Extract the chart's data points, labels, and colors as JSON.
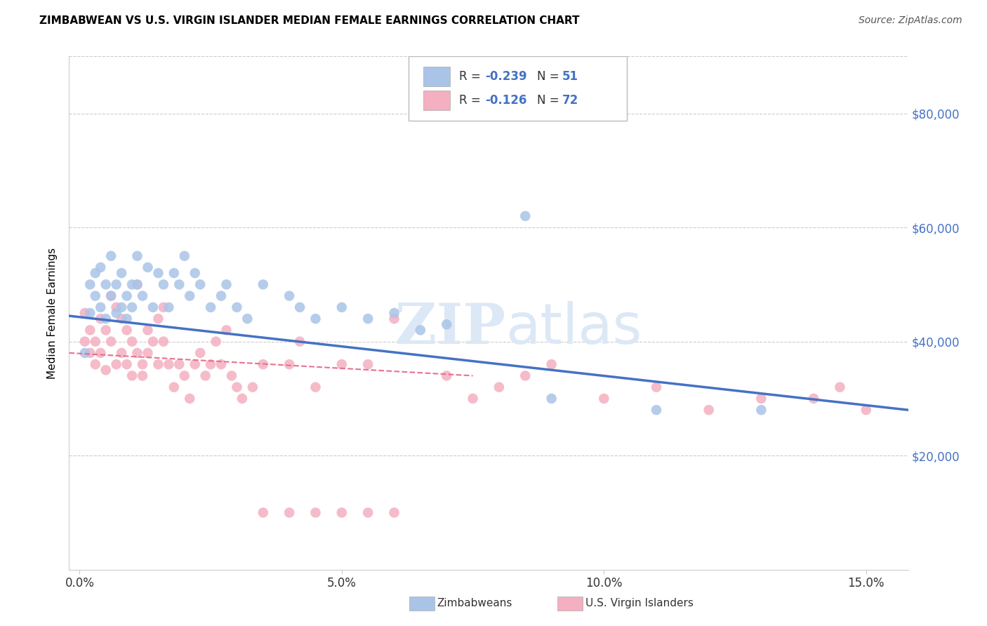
{
  "title": "ZIMBABWEAN VS U.S. VIRGIN ISLANDER MEDIAN FEMALE EARNINGS CORRELATION CHART",
  "source": "Source: ZipAtlas.com",
  "ylabel": "Median Female Earnings",
  "xlabel_ticks": [
    "0.0%",
    "5.0%",
    "10.0%",
    "15.0%"
  ],
  "xlabel_vals": [
    0.0,
    0.05,
    0.1,
    0.15
  ],
  "ylabel_ticks": [
    "$20,000",
    "$40,000",
    "$60,000",
    "$80,000"
  ],
  "ylabel_vals": [
    20000,
    40000,
    60000,
    80000
  ],
  "ylim": [
    0,
    90000
  ],
  "xlim": [
    -0.002,
    0.158
  ],
  "blue_color": "#aac4e8",
  "pink_color": "#f4afc0",
  "blue_line_color": "#4472c4",
  "pink_line_color": "#e87090",
  "background_color": "#ffffff",
  "grid_color": "#cccccc",
  "blue_scatter_x": [
    0.001,
    0.002,
    0.002,
    0.003,
    0.003,
    0.004,
    0.004,
    0.005,
    0.005,
    0.006,
    0.006,
    0.007,
    0.007,
    0.008,
    0.008,
    0.009,
    0.009,
    0.01,
    0.01,
    0.011,
    0.011,
    0.012,
    0.013,
    0.014,
    0.015,
    0.016,
    0.017,
    0.018,
    0.019,
    0.02,
    0.021,
    0.022,
    0.023,
    0.025,
    0.027,
    0.028,
    0.03,
    0.032,
    0.035,
    0.04,
    0.042,
    0.045,
    0.05,
    0.055,
    0.06,
    0.065,
    0.07,
    0.085,
    0.09,
    0.11,
    0.13
  ],
  "blue_scatter_y": [
    38000,
    45000,
    50000,
    48000,
    52000,
    46000,
    53000,
    50000,
    44000,
    48000,
    55000,
    50000,
    45000,
    52000,
    46000,
    48000,
    44000,
    50000,
    46000,
    50000,
    55000,
    48000,
    53000,
    46000,
    52000,
    50000,
    46000,
    52000,
    50000,
    55000,
    48000,
    52000,
    50000,
    46000,
    48000,
    50000,
    46000,
    44000,
    50000,
    48000,
    46000,
    44000,
    46000,
    44000,
    45000,
    42000,
    43000,
    62000,
    30000,
    28000,
    28000
  ],
  "pink_scatter_x": [
    0.001,
    0.001,
    0.002,
    0.002,
    0.003,
    0.003,
    0.004,
    0.004,
    0.005,
    0.005,
    0.006,
    0.006,
    0.007,
    0.007,
    0.008,
    0.008,
    0.009,
    0.009,
    0.01,
    0.01,
    0.011,
    0.011,
    0.012,
    0.012,
    0.013,
    0.013,
    0.014,
    0.015,
    0.015,
    0.016,
    0.016,
    0.017,
    0.018,
    0.019,
    0.02,
    0.021,
    0.022,
    0.023,
    0.024,
    0.025,
    0.026,
    0.027,
    0.028,
    0.029,
    0.03,
    0.031,
    0.033,
    0.035,
    0.04,
    0.042,
    0.045,
    0.05,
    0.055,
    0.06,
    0.07,
    0.075,
    0.08,
    0.085,
    0.09,
    0.1,
    0.11,
    0.12,
    0.13,
    0.14,
    0.145,
    0.15,
    0.035,
    0.04,
    0.045,
    0.05,
    0.055,
    0.06
  ],
  "pink_scatter_y": [
    40000,
    45000,
    38000,
    42000,
    36000,
    40000,
    44000,
    38000,
    42000,
    35000,
    48000,
    40000,
    46000,
    36000,
    44000,
    38000,
    42000,
    36000,
    40000,
    34000,
    38000,
    50000,
    36000,
    34000,
    38000,
    42000,
    40000,
    44000,
    36000,
    40000,
    46000,
    36000,
    32000,
    36000,
    34000,
    30000,
    36000,
    38000,
    34000,
    36000,
    40000,
    36000,
    42000,
    34000,
    32000,
    30000,
    32000,
    36000,
    36000,
    40000,
    32000,
    36000,
    36000,
    44000,
    34000,
    30000,
    32000,
    34000,
    36000,
    30000,
    32000,
    28000,
    30000,
    30000,
    32000,
    28000,
    10000,
    10000,
    10000,
    10000,
    10000,
    10000
  ]
}
